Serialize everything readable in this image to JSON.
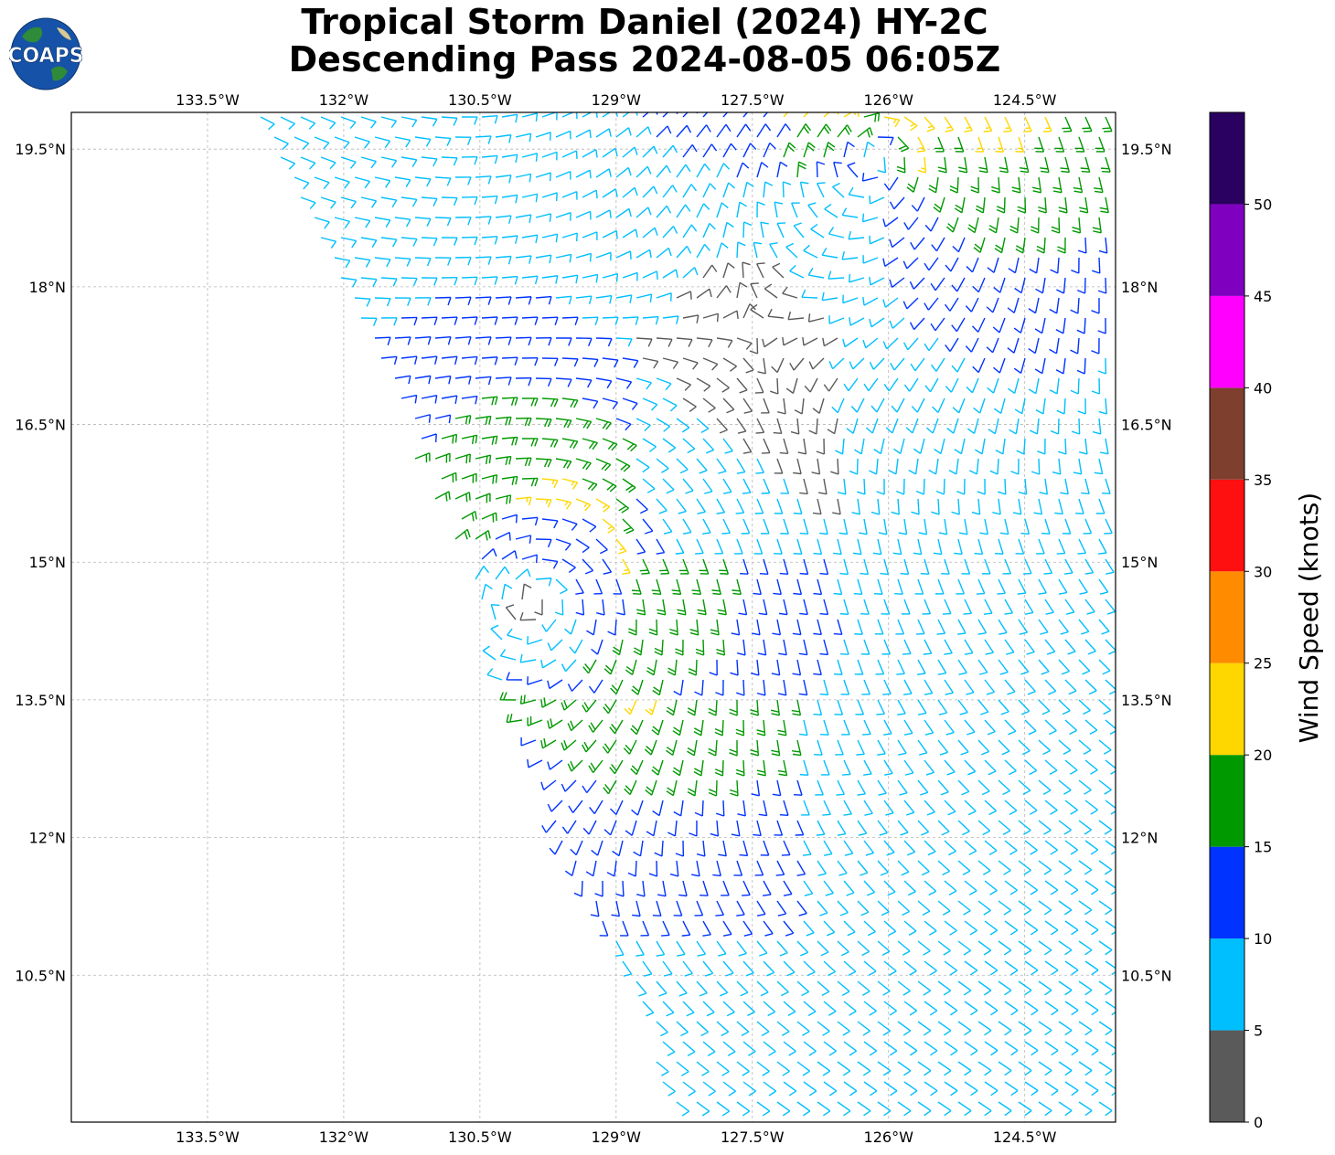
{
  "title": {
    "line1": "Tropical Storm Daniel (2024) HY-2C",
    "line2": "Descending Pass 2024-08-05 06:05Z"
  },
  "logo": {
    "text": "COAPS",
    "icon": "globe-icon"
  },
  "map": {
    "lon_range": [
      -135.0,
      -123.5
    ],
    "lat_range": [
      8.9,
      19.9
    ],
    "lon_ticks": [
      "133.5°W",
      "132°W",
      "130.5°W",
      "129°W",
      "127.5°W",
      "126°W",
      "124.5°W"
    ],
    "lon_tick_values": [
      -133.5,
      -132.0,
      -130.5,
      -129.0,
      -127.5,
      -126.0,
      -124.5
    ],
    "lat_ticks": [
      "19.5°N",
      "18°N",
      "16.5°N",
      "15°N",
      "13.5°N",
      "12°N",
      "10.5°N"
    ],
    "lat_tick_values": [
      19.5,
      18.0,
      16.5,
      15.0,
      13.5,
      12.0,
      10.5
    ],
    "gridlines": true,
    "storm_center": {
      "lon": -129.8,
      "lat": 14.7
    },
    "secondary_circulation": {
      "lon": -126.0,
      "lat": 19.6
    }
  },
  "colorbar": {
    "label": "Wind Speed (knots)",
    "bins": [
      {
        "min": 0,
        "max": 5,
        "color": "#5a5a5a"
      },
      {
        "min": 5,
        "max": 10,
        "color": "#00bfff"
      },
      {
        "min": 10,
        "max": 15,
        "color": "#0033ff"
      },
      {
        "min": 15,
        "max": 20,
        "color": "#009900"
      },
      {
        "min": 20,
        "max": 25,
        "color": "#ffd700"
      },
      {
        "min": 25,
        "max": 30,
        "color": "#ff8c00"
      },
      {
        "min": 30,
        "max": 35,
        "color": "#ff1010"
      },
      {
        "min": 35,
        "max": 40,
        "color": "#7f3f2f"
      },
      {
        "min": 40,
        "max": 45,
        "color": "#ff00ff"
      },
      {
        "min": 45,
        "max": 50,
        "color": "#7f00bf"
      },
      {
        "min": 50,
        "max": 55,
        "color": "#2a0060"
      }
    ],
    "tick_labels": [
      "0",
      "5",
      "10",
      "15",
      "20",
      "25",
      "30",
      "35",
      "40",
      "45",
      "50"
    ]
  }
}
